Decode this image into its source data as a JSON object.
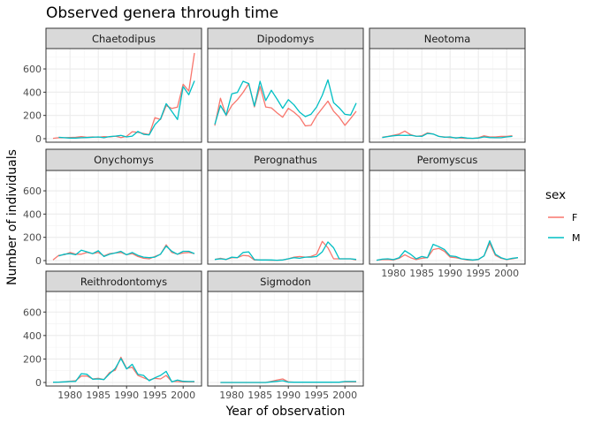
{
  "chart_data": {
    "type": "line",
    "title": "Observed genera through time",
    "xlabel": "Year of observation",
    "ylabel": "Number of individuals",
    "xlim": [
      1977,
      2002
    ],
    "ylim": [
      0,
      775
    ],
    "x_ticks": [
      1980,
      1985,
      1990,
      1995,
      2000
    ],
    "y_ticks": [
      0,
      200,
      400,
      600
    ],
    "grid": true,
    "facet_layout": "3x3 grid (facet_wrap), shared axes",
    "legend": {
      "title": "sex",
      "placement": "right",
      "entries": [
        {
          "label": "F",
          "color": "#F8766D"
        },
        {
          "label": "M",
          "color": "#00BFC4"
        }
      ]
    },
    "x": [
      1977,
      1978,
      1979,
      1980,
      1981,
      1982,
      1983,
      1984,
      1985,
      1986,
      1987,
      1988,
      1989,
      1990,
      1991,
      1992,
      1993,
      1994,
      1995,
      1996,
      1997,
      1998,
      1999,
      2000,
      2001,
      2002
    ],
    "facets": [
      {
        "name": "Chaetodipus",
        "series": [
          {
            "name": "F",
            "values": [
              3,
              8,
              8,
              10,
              12,
              18,
              12,
              15,
              12,
              18,
              15,
              22,
              10,
              20,
              60,
              55,
              45,
              35,
              180,
              165,
              285,
              260,
              272,
              468,
              410,
              737
            ]
          },
          {
            "name": "M",
            "values": [
              null,
              12,
              8,
              5,
              5,
              8,
              10,
              12,
              15,
              8,
              18,
              22,
              28,
              15,
              22,
              62,
              37,
              33,
              120,
              170,
              302,
              235,
              165,
              448,
              378,
              498
            ]
          }
        ]
      },
      {
        "name": "Dipodomys",
        "series": [
          {
            "name": "F",
            "values": [
              112,
              348,
              198,
              286,
              336,
              398,
              474,
              273,
              449,
              273,
              265,
              223,
              185,
              261,
              228,
              185,
              110,
              115,
              198,
              261,
              323,
              236,
              185,
              115,
              173,
              236
            ]
          },
          {
            "name": "M",
            "values": [
              123,
              286,
              203,
              386,
              398,
              494,
              474,
              281,
              494,
              328,
              416,
              341,
              261,
              336,
              291,
              228,
              190,
              210,
              273,
              373,
              506,
              310,
              265,
              210,
              203,
              306
            ]
          }
        ]
      },
      {
        "name": "Neotoma",
        "series": [
          {
            "name": "F",
            "values": [
              null,
              12,
              20,
              30,
              40,
              65,
              35,
              20,
              25,
              50,
              40,
              20,
              15,
              10,
              8,
              5,
              3,
              3,
              8,
              25,
              15,
              15,
              20,
              20,
              25,
              null
            ]
          },
          {
            "name": "M",
            "values": [
              null,
              10,
              18,
              25,
              30,
              28,
              30,
              22,
              20,
              45,
              40,
              20,
              12,
              15,
              5,
              12,
              5,
              3,
              5,
              15,
              10,
              8,
              8,
              15,
              20,
              null
            ]
          }
        ]
      },
      {
        "name": "Onychomys",
        "series": [
          {
            "name": "F",
            "values": [
              5,
              45,
              50,
              70,
              55,
              55,
              70,
              60,
              70,
              40,
              60,
              65,
              70,
              50,
              60,
              35,
              20,
              15,
              35,
              55,
              135,
              70,
              55,
              65,
              70,
              60
            ]
          },
          {
            "name": "M",
            "values": [
              null,
              40,
              55,
              60,
              50,
              90,
              75,
              60,
              85,
              35,
              55,
              65,
              80,
              50,
              70,
              45,
              30,
              25,
              30,
              55,
              125,
              80,
              55,
              80,
              80,
              60
            ]
          }
        ]
      },
      {
        "name": "Perognathus",
        "series": [
          {
            "name": "F",
            "values": [
              10,
              20,
              10,
              25,
              25,
              45,
              40,
              5,
              5,
              5,
              3,
              3,
              5,
              15,
              30,
              35,
              30,
              35,
              55,
              165,
              110,
              15,
              15,
              15,
              15,
              5
            ]
          },
          {
            "name": "M",
            "values": [
              10,
              15,
              10,
              30,
              25,
              70,
              75,
              8,
              5,
              5,
              5,
              3,
              5,
              15,
              25,
              20,
              30,
              30,
              35,
              75,
              160,
              110,
              15,
              15,
              15,
              10
            ]
          }
        ]
      },
      {
        "name": "Peromyscus",
        "series": [
          {
            "name": "F",
            "values": [
              3,
              8,
              10,
              5,
              20,
              50,
              25,
              8,
              20,
              25,
              95,
              105,
              80,
              30,
              25,
              15,
              5,
              3,
              10,
              40,
              150,
              45,
              20,
              8,
              15,
              25
            ]
          },
          {
            "name": "M",
            "values": [
              3,
              12,
              15,
              8,
              25,
              85,
              55,
              15,
              35,
              25,
              140,
              120,
              95,
              40,
              35,
              15,
              10,
              5,
              10,
              40,
              170,
              55,
              25,
              10,
              20,
              25
            ]
          }
        ]
      },
      {
        "name": "Reithrodontomys",
        "series": [
          {
            "name": "F",
            "values": [
              2,
              3,
              5,
              10,
              15,
              55,
              55,
              30,
              35,
              25,
              85,
              105,
              215,
              120,
              130,
              60,
              40,
              20,
              35,
              30,
              60,
              8,
              8,
              5,
              5,
              5
            ]
          },
          {
            "name": "M",
            "values": [
              2,
              3,
              5,
              8,
              10,
              75,
              70,
              28,
              30,
              25,
              75,
              120,
              205,
              115,
              155,
              70,
              60,
              15,
              40,
              60,
              95,
              5,
              20,
              10,
              8,
              8
            ]
          }
        ]
      },
      {
        "name": "Sigmodon",
        "series": [
          {
            "name": "F",
            "values": [
              null,
              0,
              0,
              0,
              0,
              0,
              0,
              0,
              0,
              0,
              10,
              20,
              30,
              5,
              3,
              3,
              3,
              3,
              3,
              3,
              3,
              3,
              3,
              5,
              5,
              5
            ]
          },
          {
            "name": "M",
            "values": [
              null,
              0,
              0,
              0,
              0,
              0,
              0,
              0,
              0,
              0,
              5,
              10,
              15,
              3,
              2,
              2,
              2,
              2,
              2,
              2,
              2,
              2,
              2,
              8,
              8,
              8
            ]
          }
        ]
      }
    ]
  }
}
